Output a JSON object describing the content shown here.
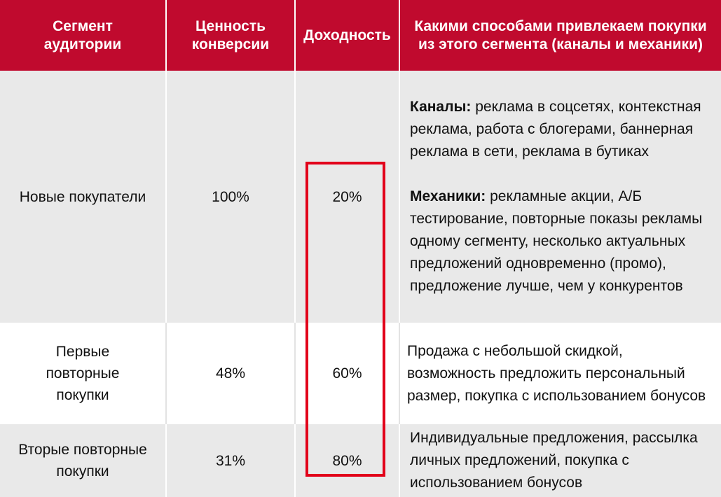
{
  "headers": {
    "segment": "Сегмент аудитории",
    "value": "Ценность конверсии",
    "profit": "Доходность",
    "methods": "Какими способами привлекаем покупки из этого сегмента (каналы и механики)"
  },
  "rows": [
    {
      "segment": "Новые покупатели",
      "value": "100%",
      "profit": "20%",
      "channels_label": "Каналы:",
      "channels_text": " реклама в соцсетях, контекстная реклама, работа с блогерами, баннерная реклама в сети, реклама в бутиках",
      "mechanics_label": "Механики:",
      "mechanics_text": " рекламные акции, А/Б тестирование, повторные показы рекламы одному сегменту, несколько актуальных предложений одновременно (промо), предложение лучше, чем у конкурентов"
    },
    {
      "segment": "Первые повторные покупки",
      "value": "48%",
      "profit": "60%",
      "methods": "Продажа с небольшой скидкой, возможность предложить персональный размер, покупка с использованием бонусов"
    },
    {
      "segment": "Вторые повторные покупки",
      "value": "31%",
      "profit": "80%",
      "methods": "Индивидуальные предложения, рассылка личных предложений, покупка с использованием бонусов"
    }
  ],
  "colors": {
    "header_bg": "#c00a2e",
    "header_text": "#ffffff",
    "row_shade": "#e9e9e9",
    "highlight_border": "#e2001a"
  }
}
